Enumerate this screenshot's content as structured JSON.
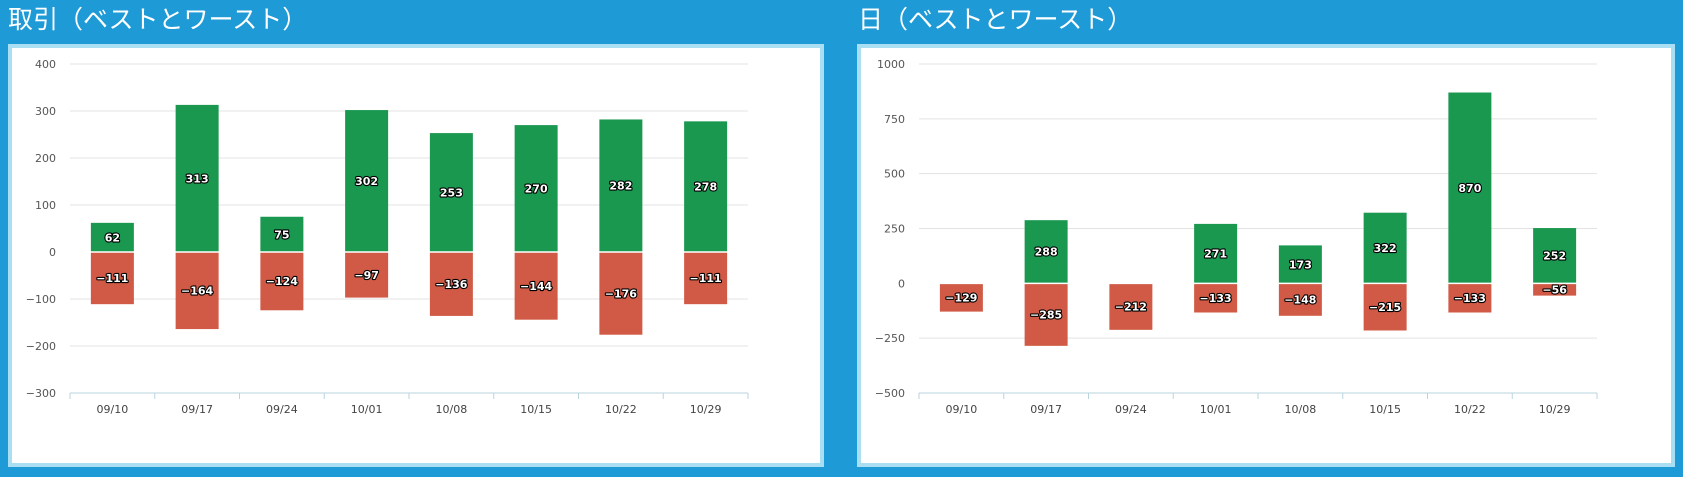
{
  "panels": [
    {
      "title": "取引（ベストとワースト）",
      "chart_data": {
        "type": "bar",
        "categories": [
          "09/10",
          "09/17",
          "09/24",
          "10/01",
          "10/08",
          "10/15",
          "10/22",
          "10/29"
        ],
        "series": [
          {
            "values": [
              62,
              313,
              75,
              302,
              253,
              270,
              282,
              278
            ],
            "color": "#1a9850"
          },
          {
            "values": [
              -111,
              -164,
              -124,
              -97,
              -136,
              -144,
              -176,
              -111
            ],
            "color": "#d05a45"
          }
        ],
        "y_ticks": [
          400,
          300,
          200,
          100,
          0,
          -100,
          -200,
          -300
        ],
        "ylim": [
          -300,
          400
        ],
        "grid": true,
        "stacked": true
      }
    },
    {
      "title": "日（ベストとワースト）",
      "chart_data": {
        "type": "bar",
        "categories": [
          "09/10",
          "09/17",
          "09/24",
          "10/01",
          "10/08",
          "10/15",
          "10/22",
          "10/29"
        ],
        "series": [
          {
            "values": [
              null,
              288,
              null,
              271,
              173,
              322,
              870,
              252
            ],
            "color": "#1a9850"
          },
          {
            "values": [
              -129,
              -285,
              -212,
              -133,
              -148,
              -215,
              -133,
              -56
            ],
            "color": "#d05a45"
          }
        ],
        "y_ticks": [
          1000,
          750,
          500,
          250,
          0,
          -250,
          -500
        ],
        "ylim": [
          -500,
          1000
        ],
        "grid": true,
        "stacked": true
      }
    }
  ]
}
